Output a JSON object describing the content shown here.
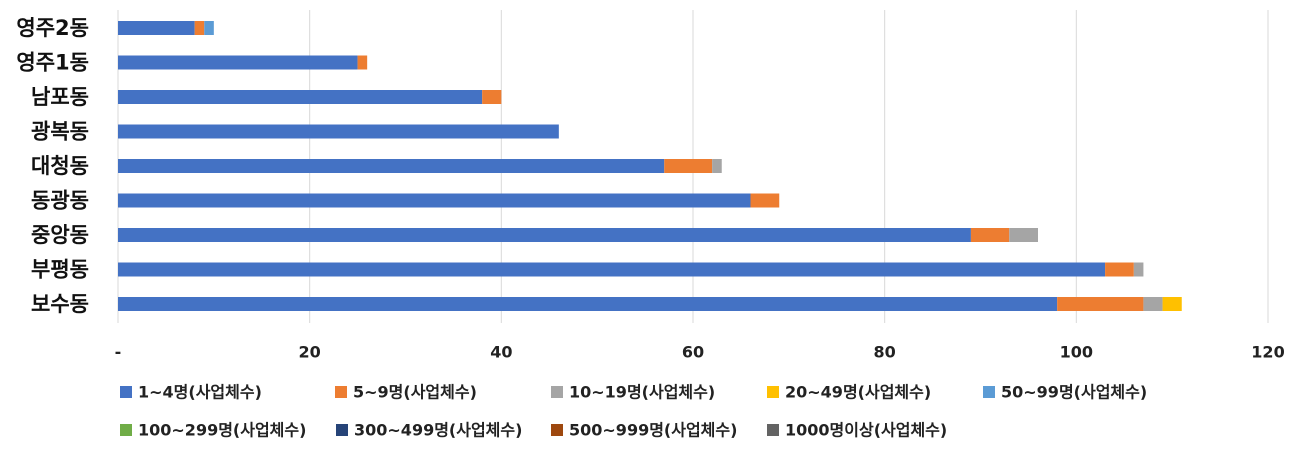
{
  "chart_data": {
    "type": "bar",
    "orientation": "horizontal",
    "stacked": true,
    "categories": [
      "영주2동",
      "영주1동",
      "남포동",
      "광복동",
      "대청동",
      "동광동",
      "중앙동",
      "부평동",
      "보수동"
    ],
    "xlim": [
      0,
      120
    ],
    "x_ticks": [
      0,
      20,
      40,
      60,
      80,
      100,
      120
    ],
    "x_tick_labels": [
      "-",
      "20",
      "40",
      "60",
      "80",
      "100",
      "120"
    ],
    "grid": "vertical",
    "legend_position": "bottom",
    "series": [
      {
        "name": "1~4명(사업체수)",
        "color": "#4472C4",
        "values": [
          8,
          25,
          38,
          46,
          57,
          66,
          89,
          103,
          98
        ]
      },
      {
        "name": "5~9명(사업체수)",
        "color": "#ED7D31",
        "values": [
          1,
          1,
          2,
          0,
          5,
          3,
          4,
          3,
          9
        ]
      },
      {
        "name": "10~19명(사업체수)",
        "color": "#A5A5A5",
        "values": [
          0,
          0,
          0,
          0,
          1,
          0,
          3,
          1,
          2
        ]
      },
      {
        "name": "20~49명(사업체수)",
        "color": "#FFC000",
        "values": [
          0,
          0,
          0,
          0,
          0,
          0,
          0,
          0,
          2
        ]
      },
      {
        "name": "50~99명(사업체수)",
        "color": "#5B9BD5",
        "values": [
          1,
          0,
          0,
          0,
          0,
          0,
          0,
          0,
          0
        ]
      },
      {
        "name": "100~299명(사업체수)",
        "color": "#70AD47",
        "values": [
          0,
          0,
          0,
          0,
          0,
          0,
          0,
          0,
          0
        ]
      },
      {
        "name": "300~499명(사업체수)",
        "color": "#264478",
        "values": [
          0,
          0,
          0,
          0,
          0,
          0,
          0,
          0,
          0
        ]
      },
      {
        "name": "500~999명(사업체수)",
        "color": "#9E480E",
        "values": [
          0,
          0,
          0,
          0,
          0,
          0,
          0,
          0,
          0
        ]
      },
      {
        "name": "1000명이상(사업체수)",
        "color": "#636363",
        "values": [
          0,
          0,
          0,
          0,
          0,
          0,
          0,
          0,
          0
        ]
      }
    ]
  }
}
